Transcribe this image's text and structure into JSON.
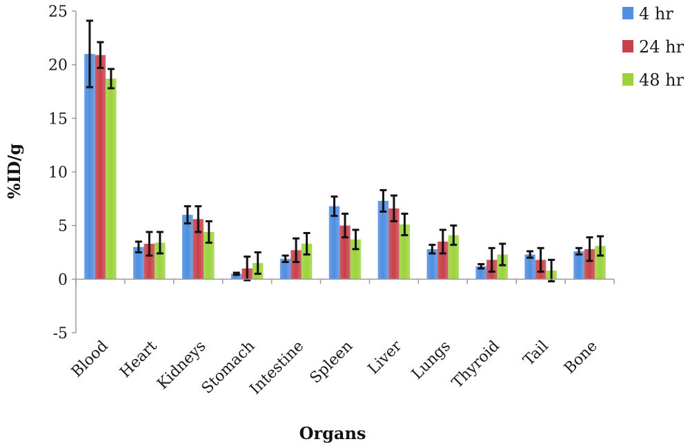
{
  "chart_data": {
    "type": "bar",
    "title": "",
    "xlabel": "Organs",
    "ylabel": "%ID/g",
    "ylim": [
      -5,
      25
    ],
    "yticks": [
      "-5",
      "0",
      "5",
      "10",
      "15",
      "20",
      "25"
    ],
    "grid": false,
    "legend_position": "right",
    "categories": [
      "Blood",
      "Heart",
      "Kidneys",
      "Stomach",
      "Intestine",
      "Spleen",
      "Liver",
      "Lungs",
      "Thyroid",
      "Tail",
      "Bone"
    ],
    "series": [
      {
        "name": "4 hr",
        "color": "#4f8ee0",
        "values": [
          21.0,
          3.0,
          6.0,
          0.5,
          1.9,
          6.8,
          7.3,
          2.8,
          1.2,
          2.3,
          2.6
        ],
        "errors": [
          3.1,
          0.5,
          0.8,
          0.1,
          0.3,
          0.9,
          1.0,
          0.4,
          0.2,
          0.3,
          0.3
        ]
      },
      {
        "name": "24 hr",
        "color": "#c8404a",
        "values": [
          20.9,
          3.3,
          5.6,
          1.0,
          2.7,
          5.0,
          6.6,
          3.5,
          1.8,
          1.8,
          2.8
        ],
        "errors": [
          1.2,
          1.1,
          1.2,
          1.1,
          1.1,
          1.1,
          1.2,
          1.1,
          1.1,
          1.1,
          1.1
        ]
      },
      {
        "name": "48 hr",
        "color": "#9ad43c",
        "values": [
          18.7,
          3.4,
          4.4,
          1.5,
          3.3,
          3.7,
          5.1,
          4.1,
          2.3,
          0.8,
          3.1
        ],
        "errors": [
          0.9,
          1.0,
          1.0,
          1.0,
          1.0,
          0.9,
          1.0,
          0.9,
          1.0,
          1.0,
          0.9
        ]
      }
    ]
  }
}
